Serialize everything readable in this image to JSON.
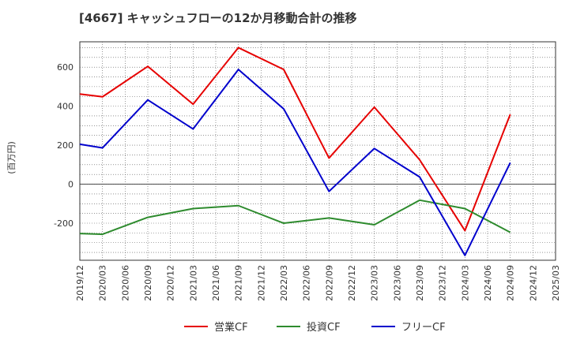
{
  "chart_data": {
    "type": "line",
    "title": "[4667]  キャッシュフローの12か月移動合計の推移",
    "ylabel": "(百万円)",
    "xlabel": "",
    "ylim": [
      -390,
      730
    ],
    "yticks": [
      -200,
      0,
      200,
      400,
      600
    ],
    "categories": [
      "2019/12",
      "2020/03",
      "2020/06",
      "2020/09",
      "2020/12",
      "2021/03",
      "2021/06",
      "2021/09",
      "2021/12",
      "2022/03",
      "2022/06",
      "2022/09",
      "2022/12",
      "2023/03",
      "2023/06",
      "2023/09",
      "2023/12",
      "2024/03",
      "2024/06",
      "2024/09",
      "2024/12",
      "2025/03"
    ],
    "series": [
      {
        "name": "営業CF",
        "color": "#e60000",
        "points": [
          [
            "2019/12",
            462
          ],
          [
            "2020/03",
            448
          ],
          [
            "2020/09",
            604
          ],
          [
            "2021/03",
            410
          ],
          [
            "2021/09",
            700
          ],
          [
            "2022/03",
            588
          ],
          [
            "2022/09",
            134
          ],
          [
            "2023/03",
            395
          ],
          [
            "2023/09",
            125
          ],
          [
            "2024/03",
            -238
          ],
          [
            "2024/09",
            358
          ]
        ]
      },
      {
        "name": "投資CF",
        "color": "#2e8b2e",
        "points": [
          [
            "2019/12",
            -253
          ],
          [
            "2020/03",
            -257
          ],
          [
            "2020/09",
            -170
          ],
          [
            "2021/03",
            -125
          ],
          [
            "2021/09",
            -110
          ],
          [
            "2022/03",
            -200
          ],
          [
            "2022/09",
            -173
          ],
          [
            "2023/03",
            -208
          ],
          [
            "2023/09",
            -82
          ],
          [
            "2024/03",
            -125
          ],
          [
            "2024/09",
            -247
          ]
        ]
      },
      {
        "name": "フリーCF",
        "color": "#0000cc",
        "points": [
          [
            "2019/12",
            205
          ],
          [
            "2020/03",
            186
          ],
          [
            "2020/09",
            432
          ],
          [
            "2021/03",
            283
          ],
          [
            "2021/09",
            588
          ],
          [
            "2022/03",
            386
          ],
          [
            "2022/09",
            -37
          ],
          [
            "2023/03",
            183
          ],
          [
            "2023/09",
            37
          ],
          [
            "2024/03",
            -365
          ],
          [
            "2024/09",
            110
          ]
        ]
      }
    ],
    "legend_position": "bottom-center",
    "grid": true
  }
}
